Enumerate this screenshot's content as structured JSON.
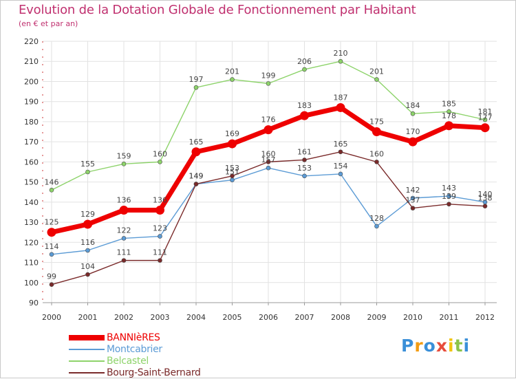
{
  "title": "Evolution de la Dotation Globale de Fonctionnement par Habitant",
  "subtitle": "(en € et par an)",
  "logo": {
    "text": "Proxiti",
    "letters": [
      "P",
      "r",
      "o",
      "x",
      "i",
      "t",
      "i"
    ],
    "colors": [
      "#3a8fd8",
      "#f39c12",
      "#3a8fd8",
      "#e74c3c",
      "#f1c40f",
      "#8bc34a",
      "#3a8fd8"
    ]
  },
  "chart_data": {
    "type": "line",
    "title": "Evolution de la Dotation Globale de Fonctionnement par Habitant",
    "subtitle": "(en € et par an)",
    "x": [
      "2000",
      "2001",
      "2002",
      "2003",
      "2004",
      "2005",
      "2006",
      "2007",
      "2008",
      "2009",
      "2010",
      "2011",
      "2012"
    ],
    "yticks": [
      "90",
      "100",
      "110",
      "120",
      "130",
      "140",
      "150",
      "160",
      "170",
      "180",
      "190",
      "200",
      "210",
      "220"
    ],
    "ylim": [
      90,
      220
    ],
    "grid": true,
    "legend_position": "bottom-left",
    "series": [
      {
        "name": "BANNIèRES",
        "color": "#ee0000",
        "values": [
          125,
          129,
          136,
          136,
          165,
          169,
          176,
          183,
          187,
          175,
          170,
          178,
          177
        ],
        "labels": [
          "125",
          "129",
          "136",
          "136",
          "165",
          "169",
          "176",
          "183",
          "187",
          "175",
          "170",
          "178",
          "177"
        ]
      },
      {
        "name": "Montcabrier",
        "color": "#5b9bd5",
        "values": [
          114,
          116,
          122,
          123,
          149,
          151,
          157,
          153,
          154,
          128,
          142,
          143,
          140
        ],
        "labels": [
          "114",
          "116",
          "122",
          "123",
          "149",
          "151",
          "157",
          "153",
          "154",
          "128",
          "142",
          "143",
          "140"
        ]
      },
      {
        "name": "Belcastel",
        "color": "#8dd36a",
        "values": [
          146,
          155,
          159,
          160,
          197,
          201,
          199,
          206,
          210,
          201,
          184,
          185,
          181
        ],
        "labels": [
          "146",
          "155",
          "159",
          "160",
          "197",
          "201",
          "199",
          "206",
          "210",
          "201",
          "184",
          "185",
          "181"
        ]
      },
      {
        "name": "Bourg-Saint-Bernard",
        "color": "#7a2a2a",
        "values": [
          99,
          104,
          111,
          111,
          149,
          153,
          160,
          161,
          165,
          160,
          137,
          139,
          138
        ],
        "labels": [
          "99",
          "104",
          "111",
          "111",
          "149",
          "153",
          "160",
          "161",
          "165",
          "160",
          "137",
          "139",
          "138"
        ]
      }
    ]
  }
}
